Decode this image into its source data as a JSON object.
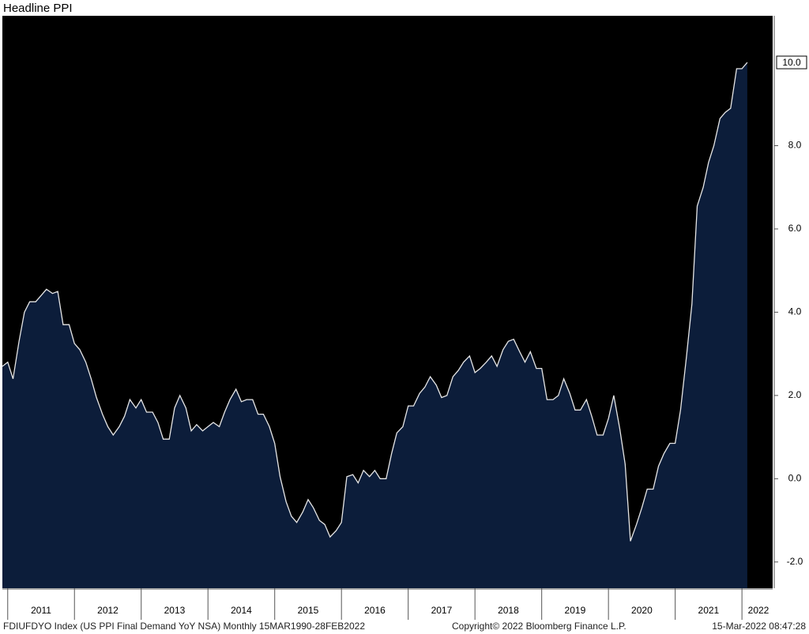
{
  "chart_data": {
    "type": "area",
    "title": "Headline PPI",
    "source_note": "FDIUFDYO Index (US PPI Final Demand YoY NSA)  Monthly 15MAR1990-28FEB2022",
    "copyright": "Copyright© 2022 Bloomberg Finance L.P.",
    "timestamp": "15-Mar-2022 08:47:28",
    "color": "#0c1d3a",
    "line_color": "#e6e6e6",
    "x": [
      2010.92,
      2011.0,
      2011.08,
      2011.17,
      2011.25,
      2011.33,
      2011.42,
      2011.5,
      2011.58,
      2011.67,
      2011.75,
      2011.83,
      2011.92,
      2012.0,
      2012.08,
      2012.17,
      2012.25,
      2012.33,
      2012.42,
      2012.5,
      2012.58,
      2012.67,
      2012.75,
      2012.83,
      2012.92,
      2013.0,
      2013.08,
      2013.17,
      2013.25,
      2013.33,
      2013.42,
      2013.5,
      2013.58,
      2013.67,
      2013.75,
      2013.83,
      2013.92,
      2014.0,
      2014.08,
      2014.17,
      2014.25,
      2014.33,
      2014.42,
      2014.5,
      2014.58,
      2014.67,
      2014.75,
      2014.83,
      2014.92,
      2015.0,
      2015.08,
      2015.17,
      2015.25,
      2015.33,
      2015.42,
      2015.5,
      2015.58,
      2015.67,
      2015.75,
      2015.83,
      2015.92,
      2016.0,
      2016.08,
      2016.17,
      2016.25,
      2016.33,
      2016.42,
      2016.5,
      2016.58,
      2016.67,
      2016.75,
      2016.83,
      2016.92,
      2017.0,
      2017.08,
      2017.17,
      2017.25,
      2017.33,
      2017.42,
      2017.5,
      2017.58,
      2017.67,
      2017.75,
      2017.83,
      2017.92,
      2018.0,
      2018.08,
      2018.17,
      2018.25,
      2018.33,
      2018.42,
      2018.5,
      2018.58,
      2018.67,
      2018.75,
      2018.83,
      2018.92,
      2019.0,
      2019.08,
      2019.17,
      2019.25,
      2019.33,
      2019.42,
      2019.5,
      2019.58,
      2019.67,
      2019.75,
      2019.83,
      2019.92,
      2020.0,
      2020.08,
      2020.17,
      2020.25,
      2020.33,
      2020.42,
      2020.5,
      2020.58,
      2020.67,
      2020.75,
      2020.83,
      2020.92,
      2021.0,
      2021.08,
      2021.17,
      2021.25,
      2021.33,
      2021.42,
      2021.5,
      2021.58,
      2021.67,
      2021.75,
      2021.83,
      2021.92,
      2022.0,
      2022.08
    ],
    "values": [
      2.7,
      2.8,
      2.4,
      3.3,
      4.0,
      4.25,
      4.25,
      4.4,
      4.55,
      4.45,
      4.5,
      3.7,
      3.7,
      3.25,
      3.1,
      2.8,
      2.4,
      1.95,
      1.55,
      1.25,
      1.05,
      1.25,
      1.5,
      1.9,
      1.7,
      1.9,
      1.6,
      1.6,
      1.35,
      0.95,
      0.95,
      1.7,
      2.0,
      1.7,
      1.15,
      1.3,
      1.15,
      1.25,
      1.35,
      1.25,
      1.6,
      1.9,
      2.15,
      1.85,
      1.9,
      1.9,
      1.55,
      1.55,
      1.25,
      0.85,
      0.05,
      -0.55,
      -0.9,
      -1.05,
      -0.8,
      -0.5,
      -0.7,
      -1.0,
      -1.1,
      -1.4,
      -1.25,
      -1.05,
      0.05,
      0.1,
      -0.1,
      0.2,
      0.05,
      0.2,
      0.0,
      0.0,
      0.6,
      1.1,
      1.25,
      1.75,
      1.75,
      2.05,
      2.2,
      2.45,
      2.25,
      1.95,
      2.0,
      2.45,
      2.6,
      2.8,
      2.95,
      2.55,
      2.65,
      2.8,
      2.95,
      2.7,
      3.1,
      3.3,
      3.35,
      3.05,
      2.8,
      3.05,
      2.65,
      2.65,
      1.9,
      1.9,
      2.0,
      2.4,
      2.05,
      1.65,
      1.65,
      1.9,
      1.5,
      1.05,
      1.05,
      1.45,
      2.0,
      1.2,
      0.35,
      -1.5,
      -1.1,
      -0.7,
      -0.25,
      -0.25,
      0.3,
      0.6,
      0.85,
      0.85,
      1.65,
      2.95,
      4.2,
      6.55,
      7.0,
      7.6,
      8.0,
      8.65,
      8.8,
      8.9,
      9.85,
      9.85,
      10.0
    ],
    "value_labels": [
      null,
      null,
      null,
      null,
      null,
      null,
      null,
      null,
      null,
      null,
      null,
      null,
      null,
      null,
      null,
      null,
      null,
      null,
      null,
      null,
      null,
      null,
      null,
      null,
      null,
      null,
      null,
      null,
      null,
      null,
      null,
      null,
      null,
      null,
      null,
      null,
      null,
      null,
      null,
      null,
      null,
      null,
      null,
      null,
      null,
      null,
      null,
      null,
      null,
      null,
      null,
      null,
      null,
      null,
      null,
      null,
      null,
      null,
      null,
      null,
      null,
      null,
      null,
      null,
      null,
      null,
      null,
      null,
      null,
      null,
      null,
      null,
      null,
      null,
      null,
      null,
      null,
      null,
      null,
      null,
      null,
      null,
      null,
      null,
      null,
      null,
      null,
      null,
      null,
      null,
      null,
      null,
      null,
      null,
      null,
      null,
      null,
      null,
      null,
      null,
      null,
      null,
      null,
      null,
      null,
      null,
      null,
      null,
      null,
      null,
      null,
      null,
      null,
      null,
      null,
      null,
      null,
      null,
      null,
      null,
      null,
      null,
      null,
      null,
      null,
      null,
      null,
      null,
      null,
      null,
      null,
      null,
      null,
      null,
      "10.0"
    ],
    "xlim": [
      2010.92,
      2022.46
    ],
    "xticks": [
      {
        "value": 2011,
        "label": "2011"
      },
      {
        "value": 2012,
        "label": "2012"
      },
      {
        "value": 2013,
        "label": "2013"
      },
      {
        "value": 2014,
        "label": "2014"
      },
      {
        "value": 2015,
        "label": "2015"
      },
      {
        "value": 2016,
        "label": "2016"
      },
      {
        "value": 2017,
        "label": "2017"
      },
      {
        "value": 2018,
        "label": "2018"
      },
      {
        "value": 2019,
        "label": "2019"
      },
      {
        "value": 2020,
        "label": "2020"
      },
      {
        "value": 2021,
        "label": "2021"
      },
      {
        "value": 2022,
        "label": "2022"
      }
    ],
    "ylim": [
      -2.63,
      11.12
    ],
    "yticks": [
      {
        "value": -2,
        "label": "-2.0"
      },
      {
        "value": 0,
        "label": "0.0"
      },
      {
        "value": 2,
        "label": "2.0"
      },
      {
        "value": 4,
        "label": "4.0"
      },
      {
        "value": 6,
        "label": "6.0"
      },
      {
        "value": 8,
        "label": "8.0"
      }
    ],
    "grid": false
  }
}
